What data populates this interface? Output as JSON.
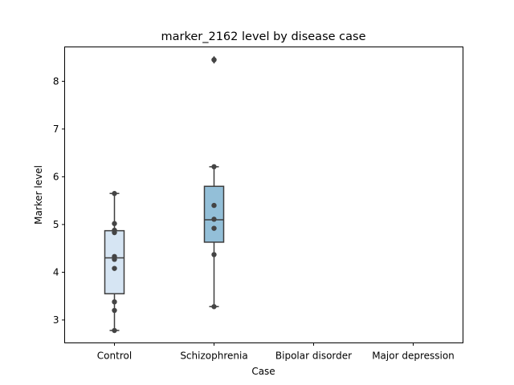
{
  "chart_data": {
    "type": "box",
    "title": "marker_2162 level by disease case",
    "xlabel": "Case",
    "ylabel": "Marker level",
    "categories": [
      "Control",
      "Schizophrenia",
      "Bipolar disorder",
      "Major depression"
    ],
    "ylim": [
      2.52,
      8.72
    ],
    "yticks": [
      3,
      4,
      5,
      6,
      7,
      8
    ],
    "grid": false,
    "boxes": [
      {
        "category": "Control",
        "color": "#d6e5f3",
        "whisker_low": 2.78,
        "q1": 3.55,
        "median": 4.3,
        "q3": 4.87,
        "whisker_high": 5.65,
        "points": [
          2.78,
          3.2,
          3.38,
          4.08,
          4.27,
          4.33,
          4.83,
          4.88,
          5.02,
          5.65
        ],
        "outliers": []
      },
      {
        "category": "Schizophrenia",
        "color": "#93bfd8",
        "whisker_low": 3.28,
        "q1": 4.63,
        "median": 5.1,
        "q3": 5.8,
        "whisker_high": 6.21,
        "points": [
          3.28,
          4.37,
          4.92,
          5.11,
          5.4,
          6.21,
          8.45
        ],
        "outliers": [
          8.45
        ]
      }
    ]
  }
}
